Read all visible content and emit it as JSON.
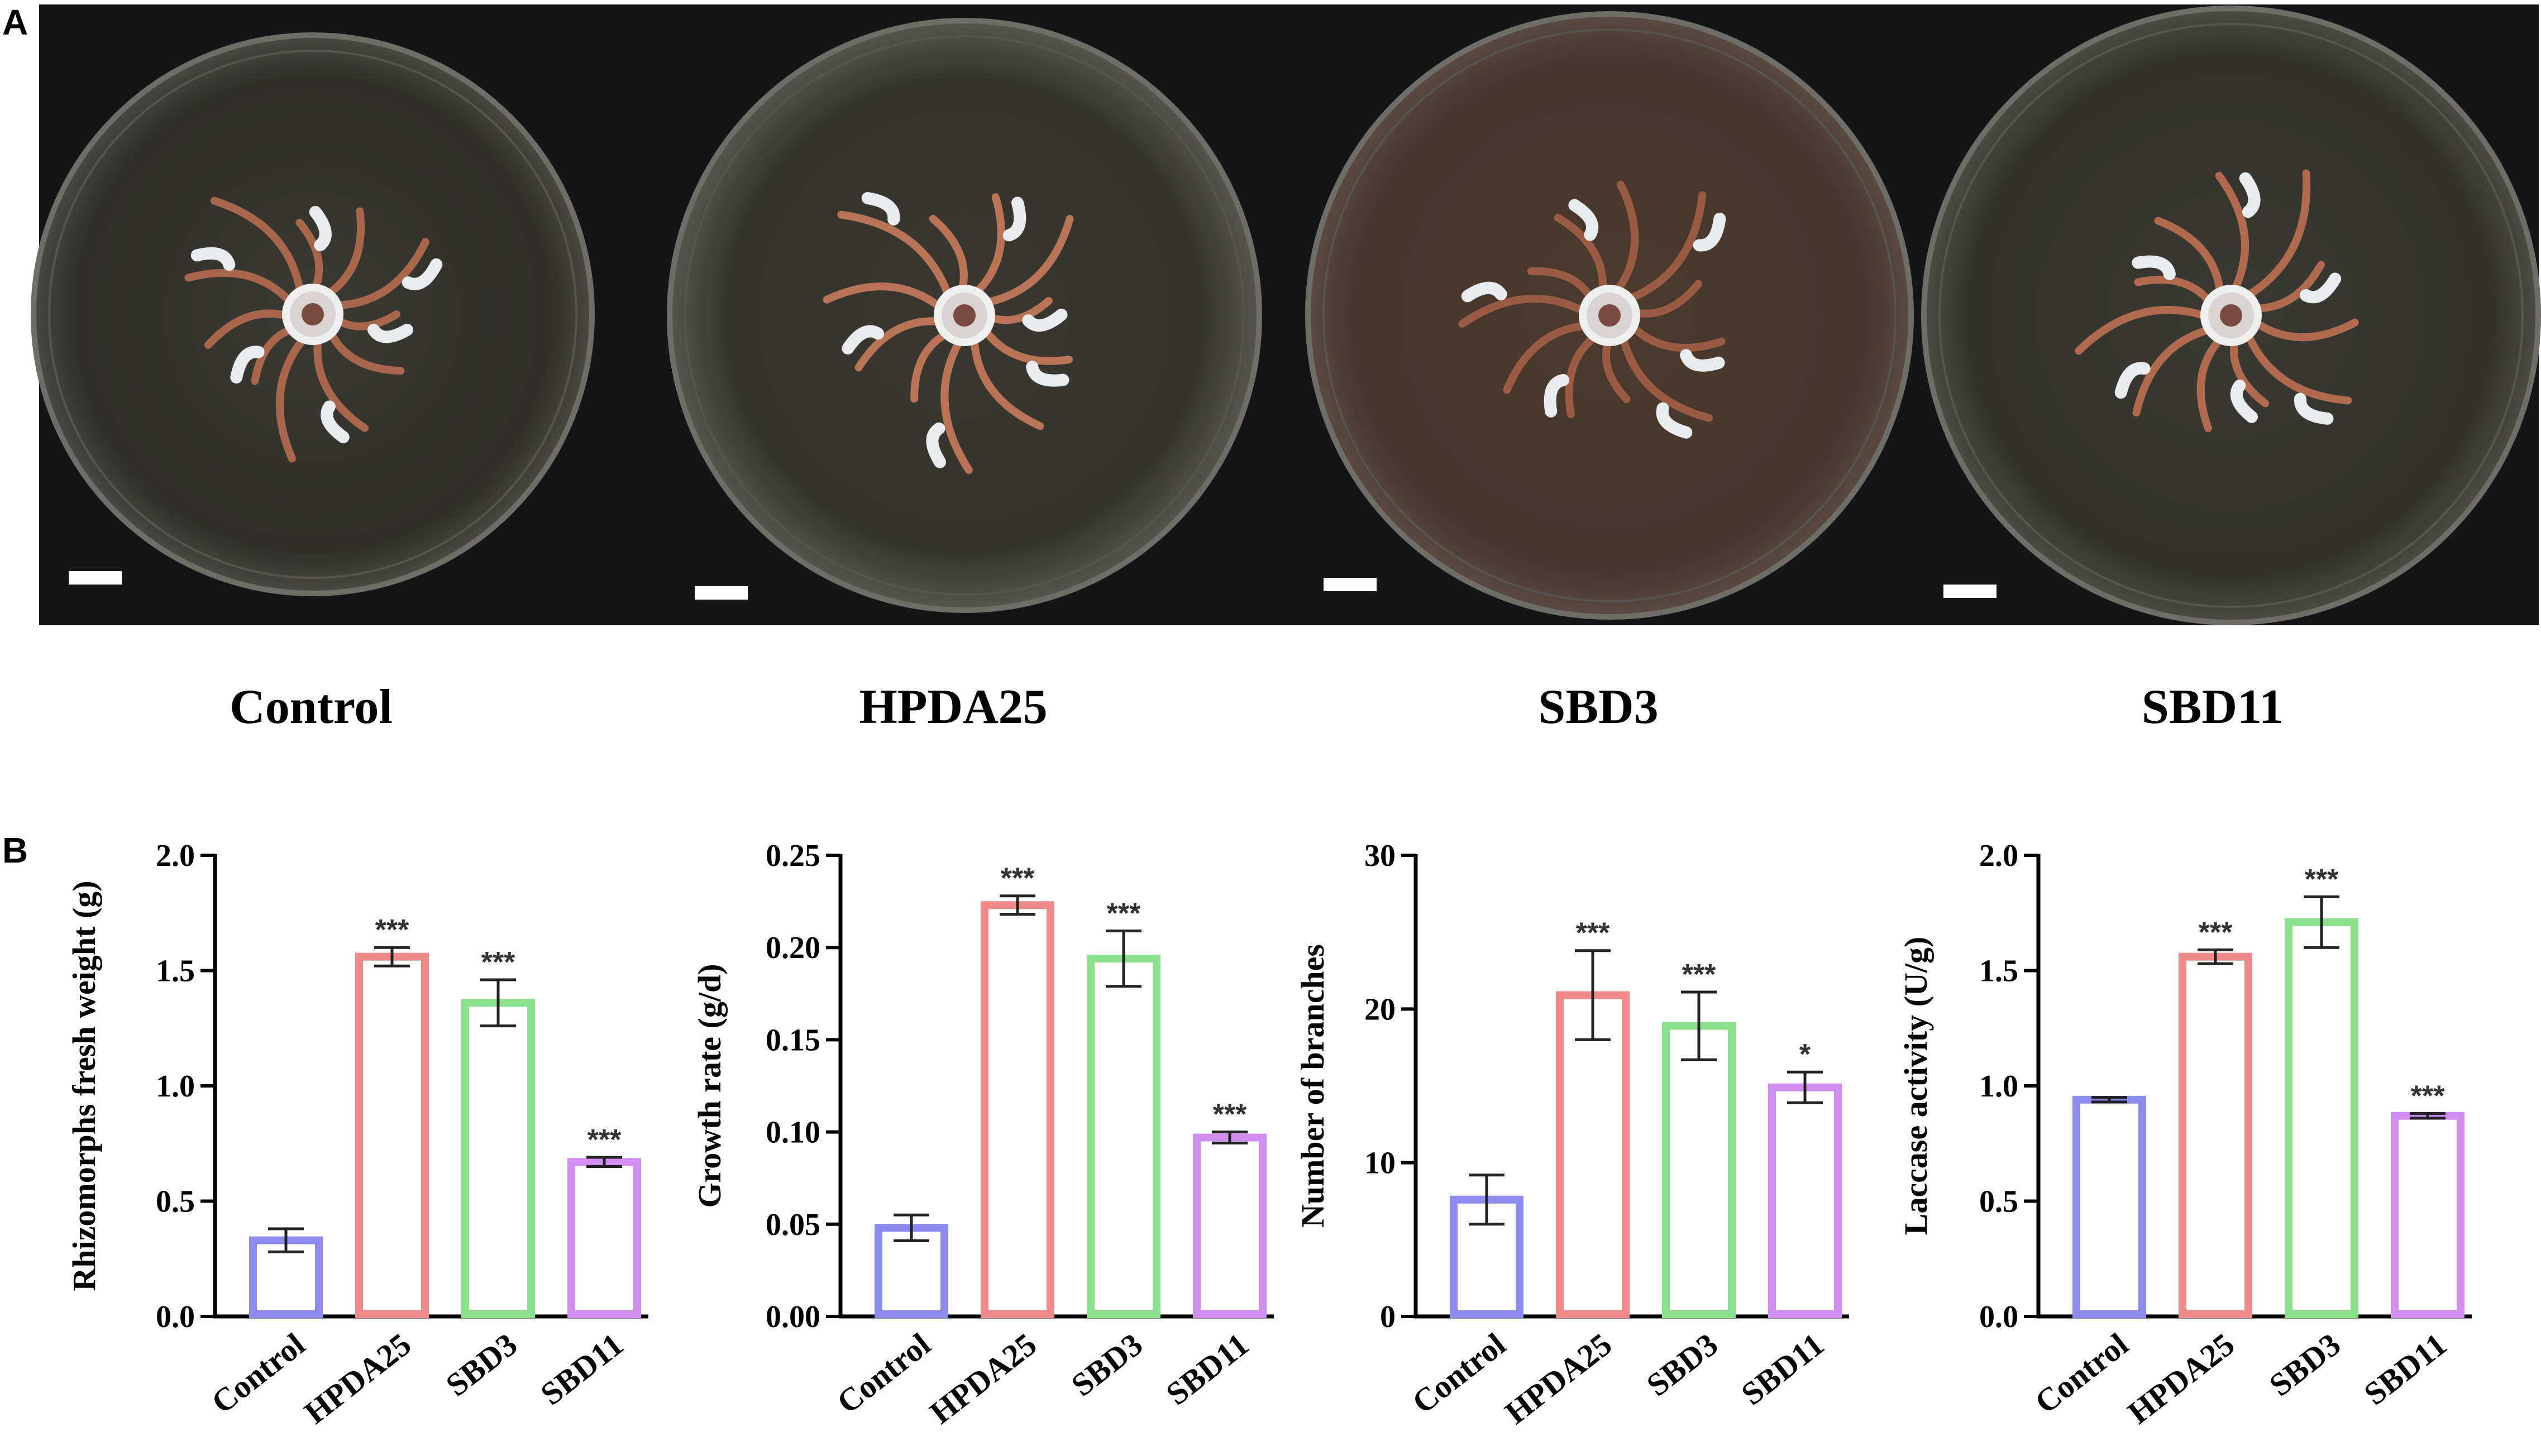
{
  "panel_a": {
    "letter": "A",
    "plates": [
      {
        "label": "Control"
      },
      {
        "label": "HPDA25"
      },
      {
        "label": "SBD3"
      },
      {
        "label": "SBD11"
      }
    ]
  },
  "panel_b": {
    "letter": "B"
  },
  "colors": {
    "Control": "#8b8bf0",
    "HPDA25": "#f08a8a",
    "SBD3": "#8ce08c",
    "SBD11": "#d28df0",
    "photo_background": "#151515"
  },
  "chart_data": [
    {
      "type": "bar",
      "categories": [
        "Control",
        "HPDA25",
        "SBD3",
        "SBD11"
      ],
      "values": [
        0.33,
        1.56,
        1.36,
        0.67
      ],
      "errors": [
        0.05,
        0.04,
        0.1,
        0.02
      ],
      "significance": [
        "",
        "***",
        "***",
        "***"
      ],
      "ylabel": "Rhizomorphs fresh weight (g)",
      "ylim": [
        0,
        2.0
      ],
      "yticks": [
        "0.0",
        "0.5",
        "1.0",
        "1.5",
        "2.0"
      ],
      "grid": false
    },
    {
      "type": "bar",
      "categories": [
        "Control",
        "HPDA25",
        "SBD3",
        "SBD11"
      ],
      "values": [
        0.048,
        0.223,
        0.194,
        0.097
      ],
      "errors": [
        0.007,
        0.005,
        0.015,
        0.003
      ],
      "significance": [
        "",
        "***",
        "***",
        "***"
      ],
      "ylabel": "Growth  rate (g/d)",
      "ylim": [
        0,
        0.25
      ],
      "yticks": [
        "0.00",
        "0.05",
        "0.10",
        "0.15",
        "0.20",
        "0.25"
      ],
      "grid": false
    },
    {
      "type": "bar",
      "categories": [
        "Control",
        "HPDA25",
        "SBD3",
        "SBD11"
      ],
      "values": [
        7.6,
        20.9,
        18.9,
        14.9
      ],
      "errors": [
        1.6,
        2.9,
        2.2,
        1.0
      ],
      "significance": [
        "",
        "***",
        "***",
        "*"
      ],
      "ylabel": "Number of branches",
      "ylim": [
        0,
        30
      ],
      "yticks": [
        "0",
        "10",
        "20",
        "30"
      ],
      "grid": false
    },
    {
      "type": "bar",
      "categories": [
        "Control",
        "HPDA25",
        "SBD3",
        "SBD11"
      ],
      "values": [
        0.94,
        1.56,
        1.71,
        0.87
      ],
      "errors": [
        0.01,
        0.03,
        0.11,
        0.01
      ],
      "significance": [
        "",
        "***",
        "***",
        "***"
      ],
      "ylabel": "Laccase activity (U/g)",
      "ylim": [
        0,
        2.0
      ],
      "yticks": [
        "0.0",
        "0.5",
        "1.0",
        "1.5",
        "2.0"
      ],
      "grid": false
    }
  ]
}
